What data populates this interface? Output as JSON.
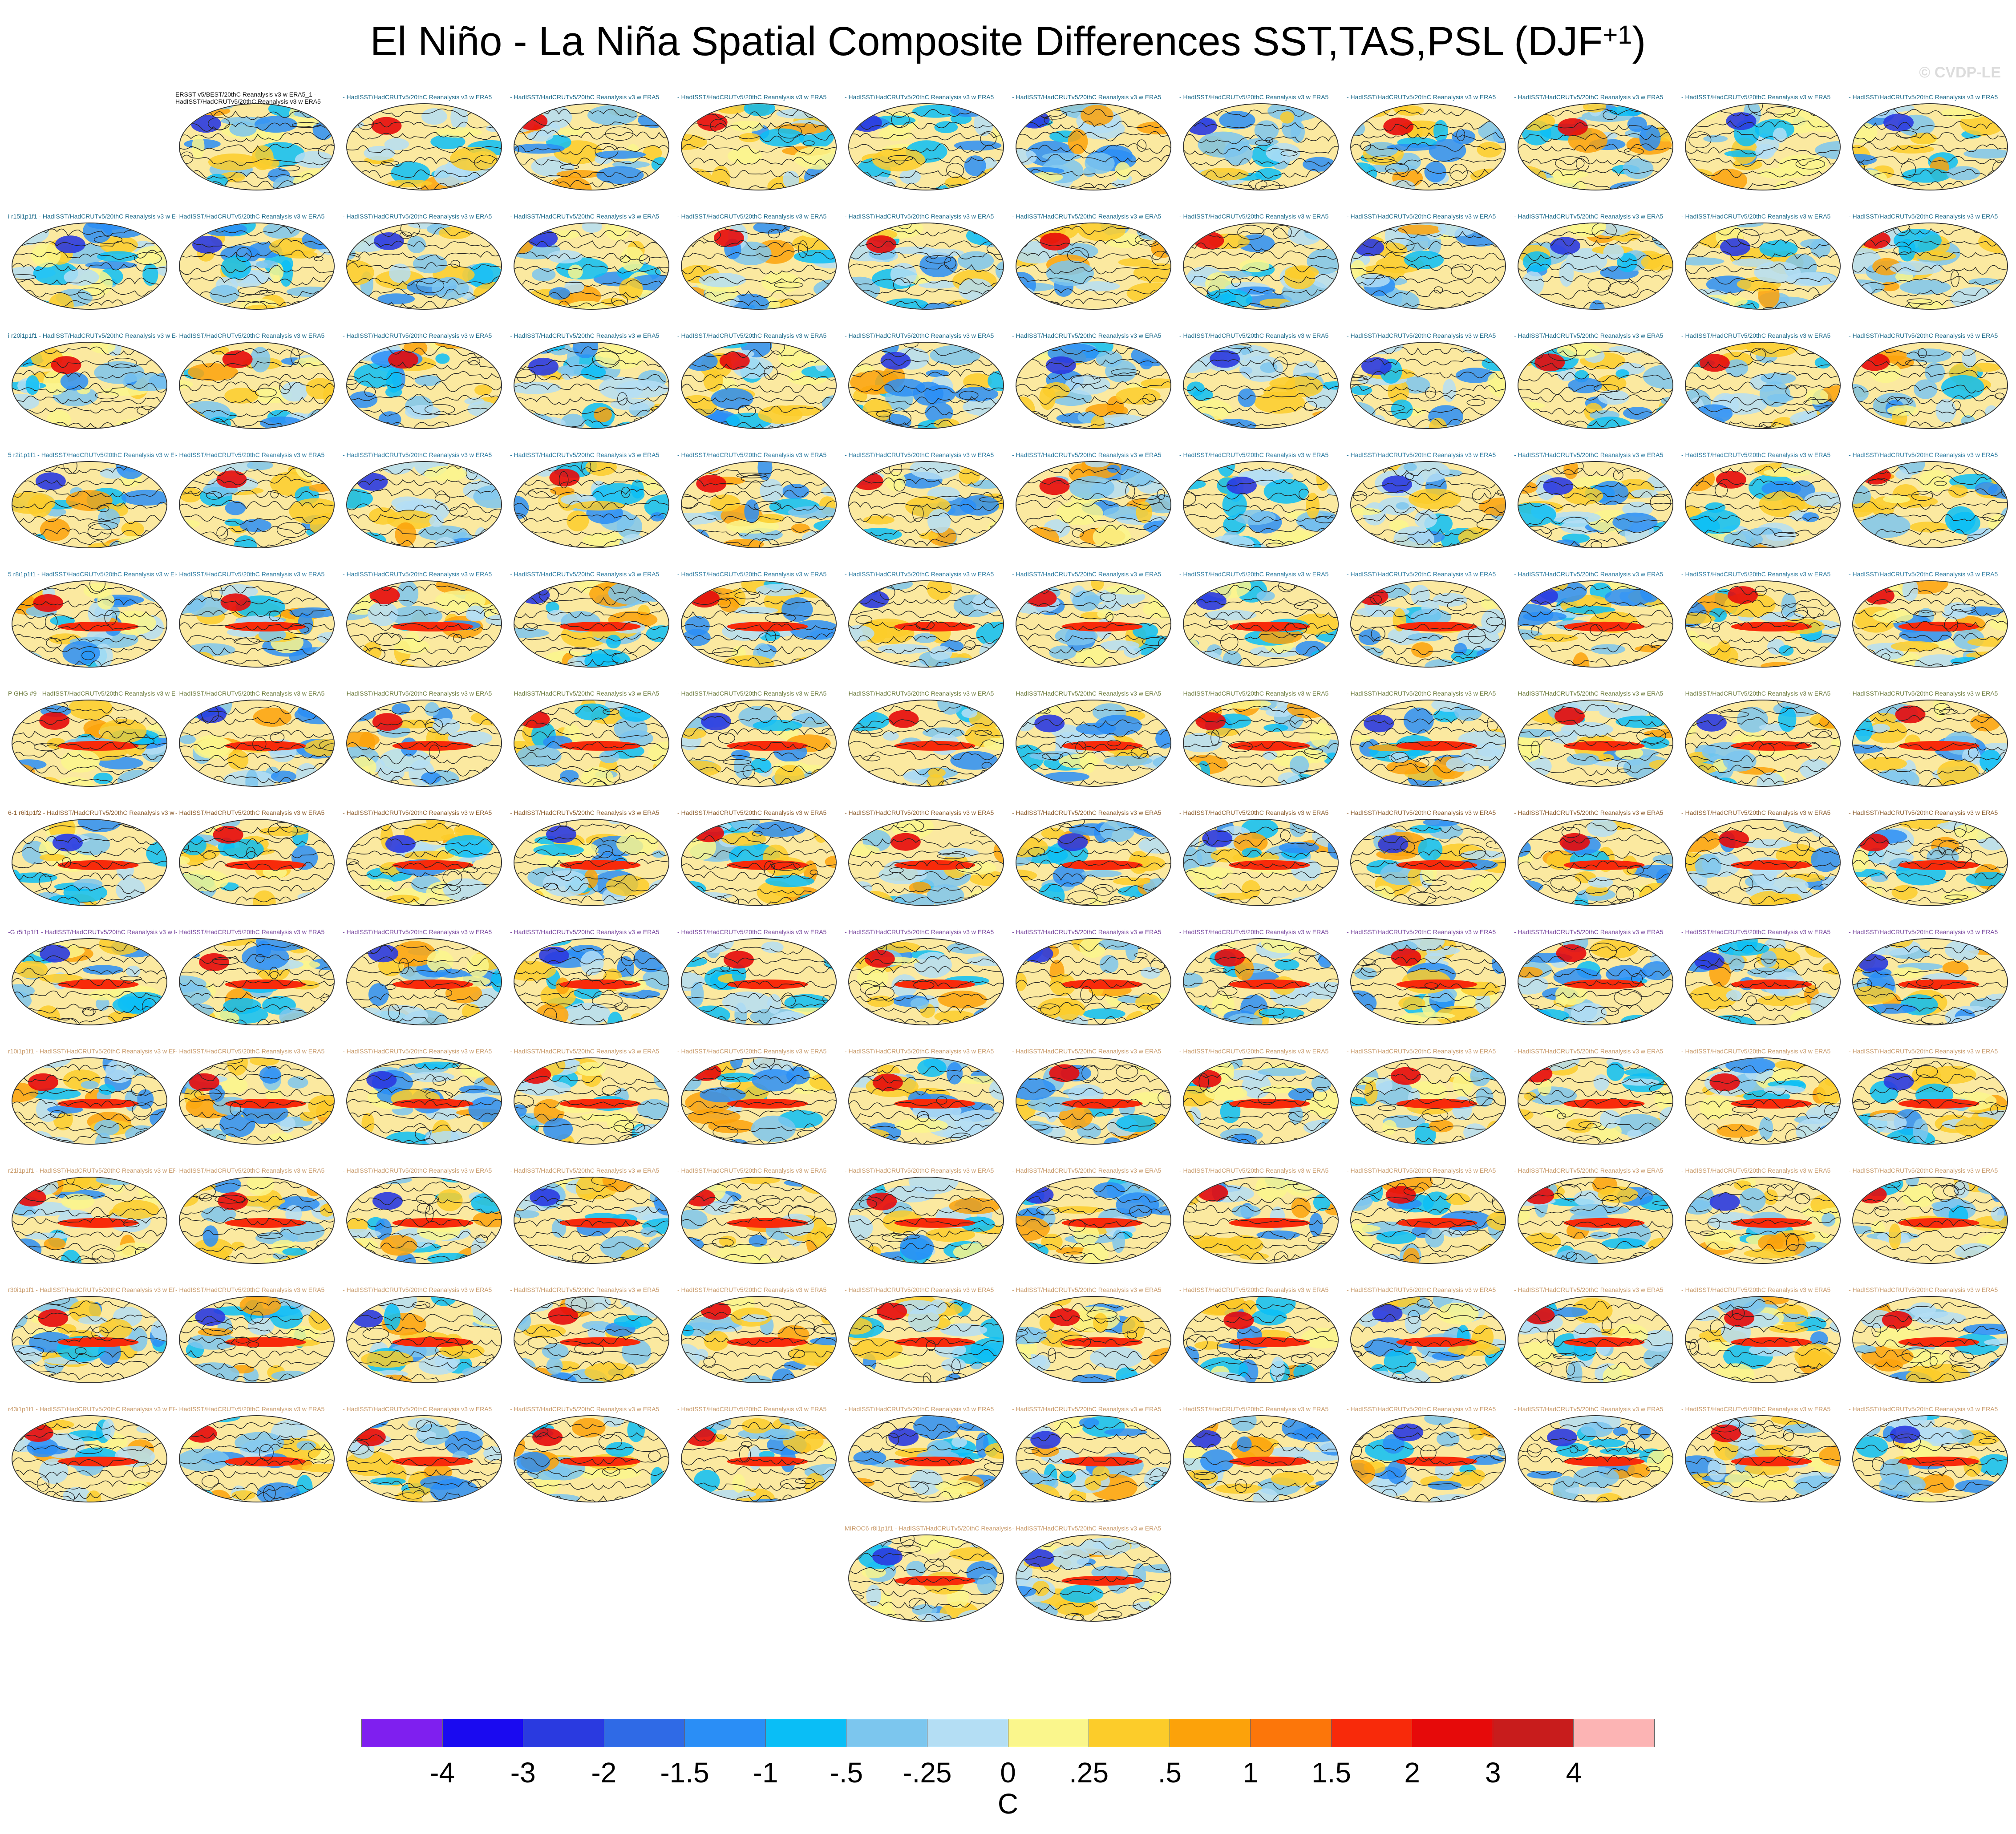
{
  "title": {
    "main": "El Niño - La Niña Spatial Composite Differences SST,TAS,PSL (DJF",
    "superscript": "+1",
    "close": ")"
  },
  "copyright": "© CVDP-LE",
  "panels": {
    "first_label_line1": "ERSST v5/BEST/20thC Reanalysis v3 w ERA5_1 -",
    "first_label_line2": "HadISST/HadCRUTv5/20thC Reanalysis v3 w ERA5",
    "row_prefixes": [
      "",
      "i r15i1p1f1",
      "i r20i1p1f1",
      "5 r2i1p1f1",
      "5 r8i1p1f1",
      "P GHG #9",
      "6-1 r6i1p1f2",
      "-G r5i1p1f1",
      "r10i1p1f1",
      "r21i1p1f1",
      "r30i1p1f1",
      "r43i1p1f1"
    ],
    "label_text": "- HadISST/HadCRUTv5/20thC Reanalysis v3 w ERA5",
    "last_row_labels": [
      "MIROC6 r8i1p1f1 - HadISST/HadCRUTv5/20thC Reanalysis v3 w ERA5",
      "- HadISST/HadCRUTv5/20thC Reanalysis v3 w ERA5"
    ],
    "label_colors": [
      "#1a6a8a",
      "#1a6a8a",
      "#1a6a8a",
      "#2a7aa0",
      "#2a7aa0",
      "#6a7a3a",
      "#8a5a2a",
      "#7a4aa0",
      "#c89a6a",
      "#c89a6a",
      "#c89a6a",
      "#c89a6a",
      "#c89a6a"
    ]
  },
  "colorbar": {
    "colors": [
      "#7f1fef",
      "#1a0af0",
      "#2a3ae0",
      "#2f6ae6",
      "#2a8ef6",
      "#0abef6",
      "#7cc6ee",
      "#b4def4",
      "#faf68c",
      "#fccc2a",
      "#fca20a",
      "#fc760a",
      "#f82a0a",
      "#e60a0a",
      "#c81c1c",
      "#fcb4b4"
    ],
    "ticks": [
      "-4",
      "-3",
      "-2",
      "-1.5",
      "-1",
      "-.5",
      "-.25",
      "0",
      ".25",
      ".5",
      "1",
      "1.5",
      "2",
      "3",
      "4"
    ],
    "unit": "C"
  }
}
